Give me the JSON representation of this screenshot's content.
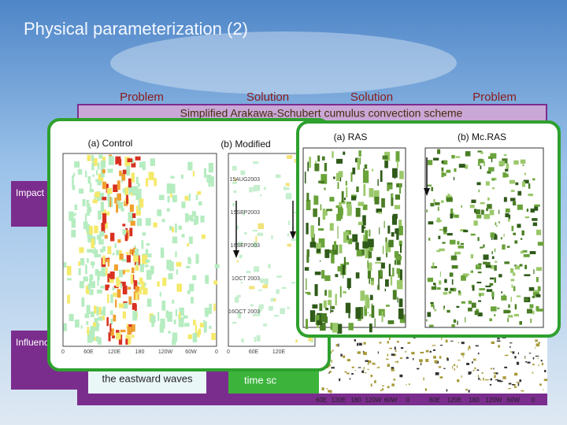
{
  "title": "Physical parameterization (2)",
  "header": {
    "columns": [
      "Problem",
      "Solution",
      "Solution",
      "Problem"
    ],
    "banner": "Simplified Arakawa-Schubert cumulus convection scheme"
  },
  "rows": [
    {
      "label": "Impact of Cumulus Parameterization"
    },
    {
      "label": "Influence of Cloud Radiation Interaction",
      "notes": [
        "the eastward waves",
        "time sc"
      ]
    }
  ],
  "panel_control_modified": {
    "titles": [
      "(a) Control",
      "(b) Modified"
    ],
    "date_labels": [
      "15AUG2003",
      "15SEP2003",
      "16SEP2003",
      "1OCT 2003",
      "16OCT 2003"
    ],
    "lon_labels": [
      "0",
      "60E",
      "120E",
      "180",
      "120W",
      "60W",
      "0"
    ]
  },
  "panel_ras": {
    "titles": [
      "(a) RAS",
      "(b) Mc.RAS"
    ]
  },
  "bottom_map_lon_labels": [
    "60E",
    "120E",
    "180",
    "120W",
    "60W",
    "0"
  ]
}
